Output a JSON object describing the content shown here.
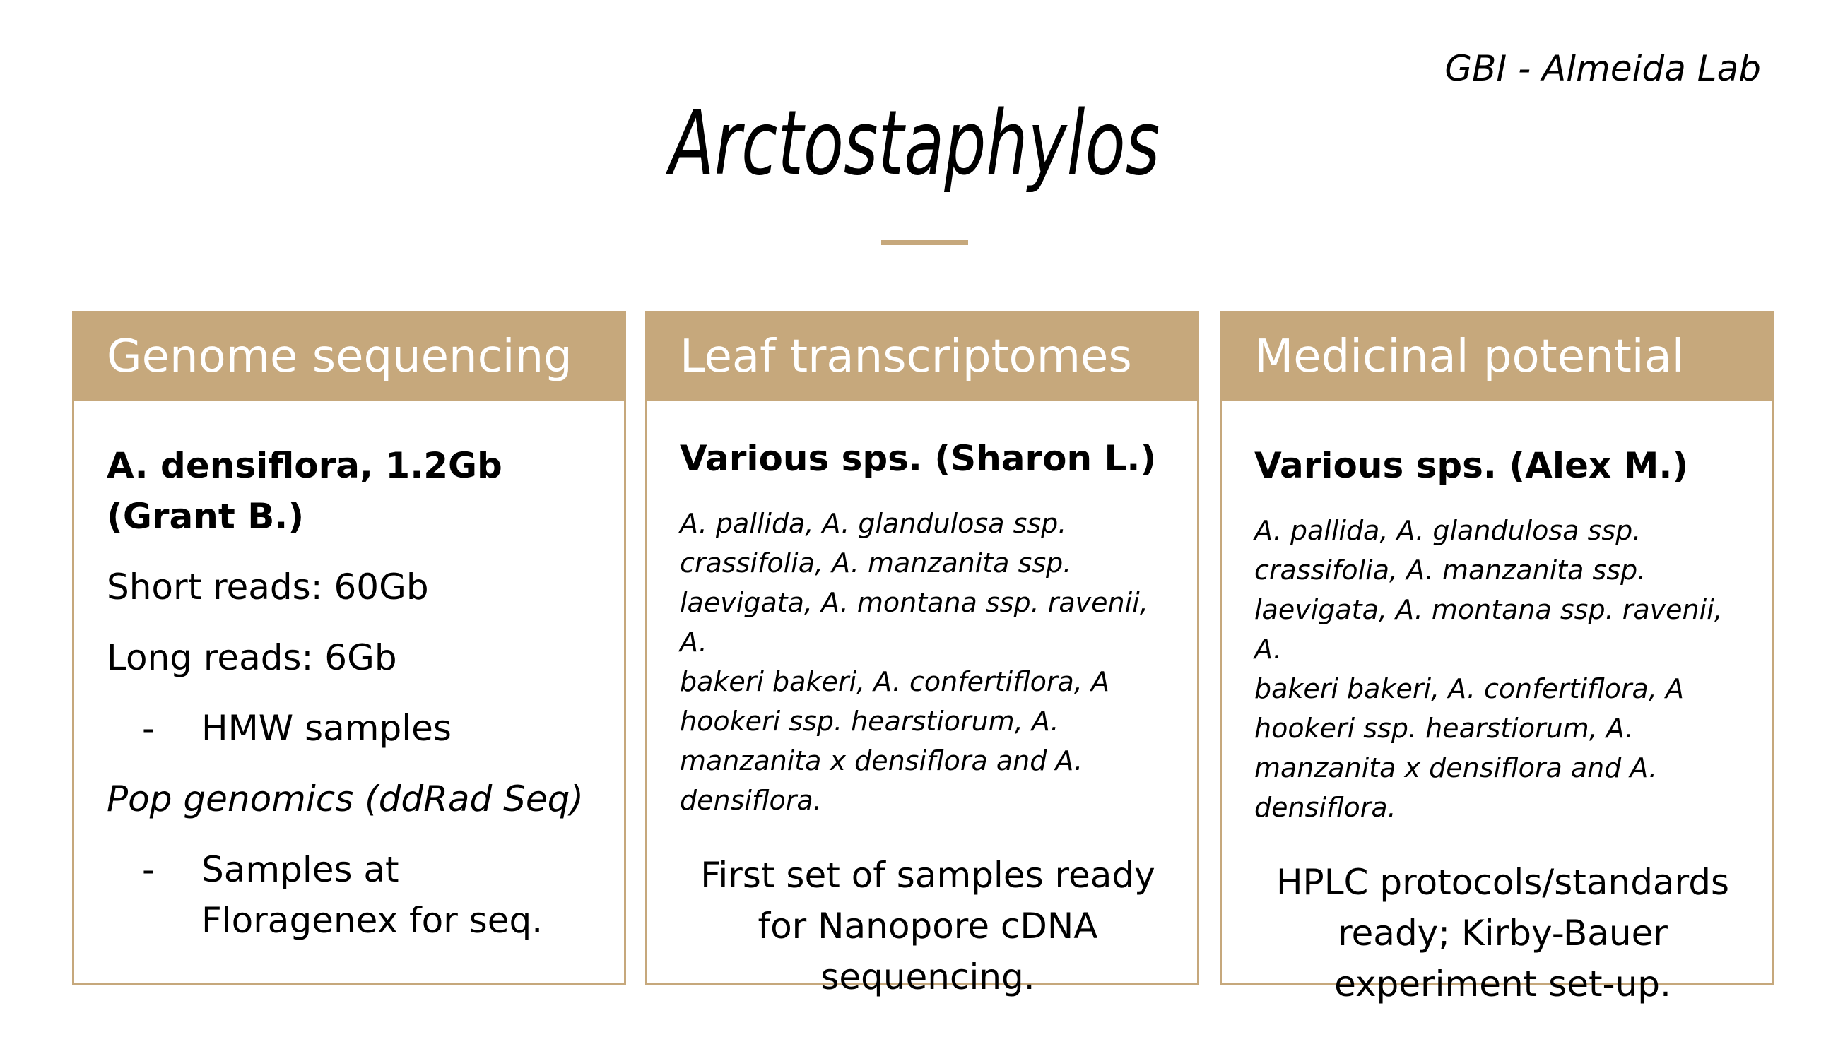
{
  "header": {
    "lab": "GBI - Almeida Lab",
    "title": "Arctostaphylos"
  },
  "cards": [
    {
      "heading": "Genome sequencing",
      "subject_line1": "A. densiflora, 1.2Gb",
      "subject_line2": "(Grant B.)",
      "short_reads": "Short reads: 60Gb",
      "long_reads": "Long reads: 6Gb",
      "bullet_dash": "-",
      "hmw": "HMW samples",
      "pop": "Pop genomics (ddRad Seq)",
      "samples_line1": "Samples at",
      "samples_line2": "Floragenex for seq."
    },
    {
      "heading": "Leaf transcriptomes",
      "subject": "Various sps. (Sharon L.)",
      "species": [
        "A. pallida, A. glandulosa ssp.",
        "crassifolia, A. manzanita ssp.",
        "laevigata, A. montana ssp. ravenii, A.",
        "bakeri bakeri, A. confertiflora, A",
        "hookeri ssp. hearstiorum, A.",
        "manzanita x densiflora and A.",
        "densiflora."
      ],
      "status": [
        "First set of samples ready",
        "for Nanopore cDNA",
        "sequencing."
      ]
    },
    {
      "heading": "Medicinal potential",
      "subject": "Various sps. (Alex M.)",
      "species": [
        "A. pallida, A. glandulosa ssp.",
        "crassifolia, A. manzanita ssp.",
        "laevigata, A. montana ssp. ravenii, A.",
        "bakeri bakeri, A. confertiflora, A",
        "hookeri ssp. hearstiorum, A.",
        "manzanita x densiflora and A.",
        "densiflora."
      ],
      "status": [
        "HPLC protocols/standards",
        "ready; Kirby-Bauer",
        "experiment set-up."
      ]
    }
  ],
  "colors": {
    "accent": "#c6a87c"
  }
}
